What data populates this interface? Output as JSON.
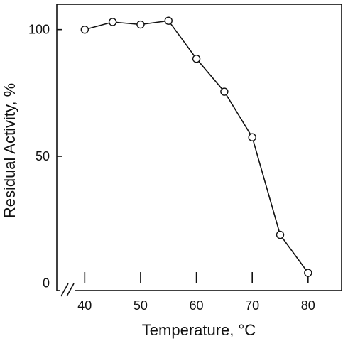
{
  "chart_data": {
    "type": "line",
    "title": "",
    "xlabel": "Temperature, °C",
    "ylabel": "Residual Activity, %",
    "xlim": [
      35,
      86
    ],
    "ylim": [
      -3,
      110
    ],
    "x_ticks": [
      40,
      50,
      60,
      70,
      80
    ],
    "x_tick_labels": [
      "40",
      "50",
      "60",
      "70",
      "80"
    ],
    "x_minor_ticks": [
      40,
      50,
      60,
      70,
      80
    ],
    "y_ticks": [
      0,
      50,
      100
    ],
    "y_tick_labels": [
      "0",
      "50",
      "100"
    ],
    "axis_break": "x-axis near origin",
    "grid": false,
    "legend": "none",
    "marker": "open-circle",
    "colors": {
      "line": "#111111",
      "marker_fill": "#ffffff"
    },
    "series": [
      {
        "x": [
          40,
          45,
          50,
          55,
          60,
          65,
          70,
          75,
          80
        ],
        "y": [
          100,
          103,
          102,
          103.5,
          88.5,
          75.5,
          57.5,
          19,
          4
        ]
      }
    ]
  }
}
